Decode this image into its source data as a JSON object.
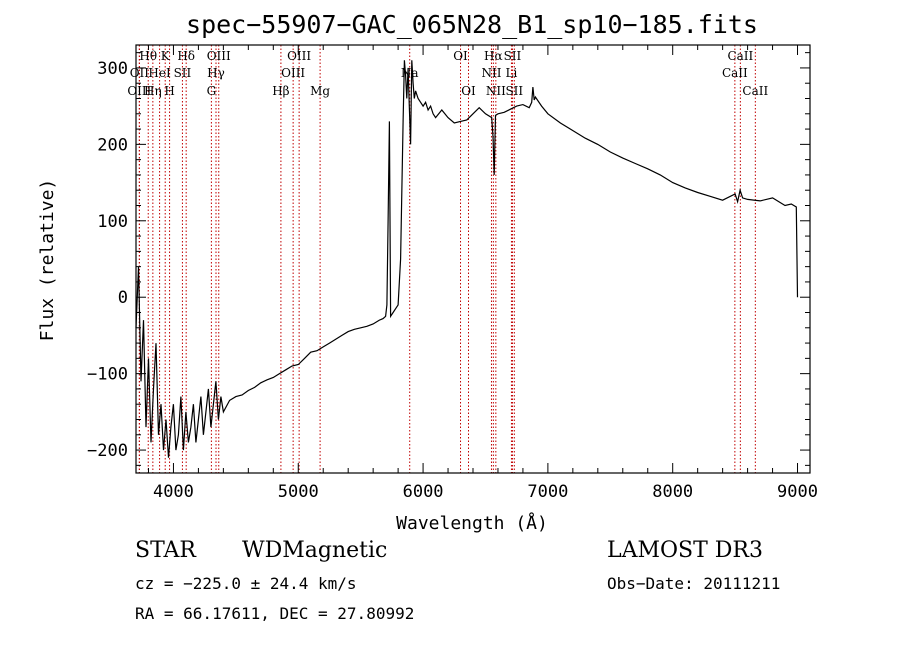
{
  "chart_data": {
    "type": "line",
    "title": "spec−55907−GAC_065N28_B1_sp10−185.fits",
    "xlabel": "Wavelength (Å)",
    "ylabel": "Flux (relative)",
    "xlim": [
      3700,
      9100
    ],
    "ylim": [
      -230,
      330
    ],
    "xticks": [
      4000,
      5000,
      6000,
      7000,
      8000,
      9000
    ],
    "xtick_labels": [
      "4000",
      "5000",
      "6000",
      "7000",
      "8000",
      "9000"
    ],
    "yticks": [
      -200,
      -100,
      0,
      100,
      200,
      300
    ],
    "ytick_labels": [
      "−200",
      "−100",
      "0",
      "100",
      "200",
      "300"
    ],
    "grid": false,
    "series": [
      {
        "x": [
          3700,
          3720,
          3740,
          3760,
          3780,
          3800,
          3820,
          3840,
          3860,
          3880,
          3900,
          3920,
          3940,
          3960,
          3980,
          4000,
          4020,
          4040,
          4060,
          4080,
          4100,
          4120,
          4140,
          4160,
          4180,
          4200,
          4220,
          4240,
          4260,
          4280,
          4300,
          4320,
          4340,
          4360,
          4380,
          4400,
          4450,
          4500,
          4550,
          4600,
          4650,
          4700,
          4750,
          4800,
          4850,
          4900,
          4950,
          5000,
          5050,
          5100,
          5150,
          5200,
          5250,
          5300,
          5350,
          5400,
          5450,
          5500,
          5550,
          5600,
          5650,
          5680,
          5700,
          5710,
          5720,
          5730,
          5740,
          5760,
          5780,
          5800,
          5820,
          5840,
          5850,
          5860,
          5870,
          5880,
          5890,
          5900,
          5910,
          5920,
          5930,
          5940,
          5960,
          5980,
          6000,
          6020,
          6040,
          6060,
          6080,
          6100,
          6150,
          6200,
          6250,
          6300,
          6350,
          6400,
          6450,
          6500,
          6550,
          6560,
          6570,
          6580,
          6600,
          6650,
          6700,
          6750,
          6800,
          6850,
          6870,
          6880,
          6890,
          6900,
          6950,
          7000,
          7100,
          7200,
          7300,
          7400,
          7500,
          7600,
          7700,
          7800,
          7900,
          8000,
          8100,
          8200,
          8300,
          8400,
          8500,
          8520,
          8540,
          8560,
          8600,
          8700,
          8800,
          8900,
          8950,
          8990,
          9000
        ],
        "values": [
          -40,
          40,
          -110,
          -30,
          -170,
          -80,
          -190,
          -120,
          -60,
          -180,
          -140,
          -200,
          -160,
          -210,
          -170,
          -140,
          -200,
          -180,
          -130,
          -200,
          -150,
          -190,
          -170,
          -140,
          -190,
          -160,
          -130,
          -180,
          -150,
          -120,
          -170,
          -140,
          -110,
          -160,
          -130,
          -150,
          -135,
          -130,
          -128,
          -122,
          -118,
          -112,
          -108,
          -105,
          -100,
          -95,
          -90,
          -88,
          -80,
          -72,
          -70,
          -65,
          -60,
          -55,
          -50,
          -45,
          -42,
          -40,
          -38,
          -35,
          -30,
          -28,
          -25,
          -10,
          100,
          230,
          -25,
          -20,
          -15,
          -10,
          50,
          230,
          310,
          290,
          260,
          300,
          250,
          200,
          310,
          280,
          260,
          270,
          260,
          255,
          250,
          255,
          245,
          250,
          240,
          235,
          245,
          235,
          228,
          230,
          232,
          240,
          248,
          240,
          235,
          210,
          160,
          238,
          240,
          242,
          246,
          250,
          252,
          248,
          255,
          275,
          258,
          262,
          250,
          240,
          228,
          218,
          208,
          200,
          190,
          182,
          175,
          168,
          160,
          150,
          143,
          137,
          132,
          127,
          135,
          125,
          140,
          130,
          128,
          126,
          130,
          120,
          122,
          118,
          0
        ]
      }
    ],
    "spectral_lines": [
      {
        "label": "Hθ",
        "x": 3798,
        "row": 0
      },
      {
        "label": "OII",
        "x": 3727,
        "row": 1
      },
      {
        "label": "OIII",
        "x": 3727,
        "row": 2
      },
      {
        "label": "K",
        "x": 3934,
        "row": 0
      },
      {
        "label": "HeI",
        "x": 3889,
        "row": 1
      },
      {
        "label": "Hη",
        "x": 3835,
        "row": 2
      },
      {
        "label": "Hδ",
        "x": 4102,
        "row": 0
      },
      {
        "label": "SII",
        "x": 4072,
        "row": 1
      },
      {
        "label": "H",
        "x": 3969,
        "row": 2
      },
      {
        "label": "OIII",
        "x": 4363,
        "row": 0
      },
      {
        "label": "Hγ",
        "x": 4341,
        "row": 1
      },
      {
        "label": "G",
        "x": 4304,
        "row": 2
      },
      {
        "label": "OIII",
        "x": 5007,
        "row": 0
      },
      {
        "label": "OIII",
        "x": 4959,
        "row": 1
      },
      {
        "label": "Hβ",
        "x": 4861,
        "row": 2
      },
      {
        "label": "Mg",
        "x": 5175,
        "row": 2
      },
      {
        "label": "Na",
        "x": 5893,
        "row": 1
      },
      {
        "label": "OI",
        "x": 6300,
        "row": 0
      },
      {
        "label": "OI",
        "x": 6364,
        "row": 2
      },
      {
        "label": "Hα",
        "x": 6563,
        "row": 0
      },
      {
        "label": "SII",
        "x": 6716,
        "row": 0
      },
      {
        "label": "NII",
        "x": 6548,
        "row": 1
      },
      {
        "label": "Li",
        "x": 6708,
        "row": 1
      },
      {
        "label": "NII",
        "x": 6583,
        "row": 2
      },
      {
        "label": "SII",
        "x": 6731,
        "row": 2
      },
      {
        "label": "CaII",
        "x": 8542,
        "row": 0
      },
      {
        "label": "CaII",
        "x": 8498,
        "row": 1
      },
      {
        "label": "CaII",
        "x": 8662,
        "row": 2
      }
    ]
  },
  "info": {
    "class": "STAR",
    "subclass": "WDMagnetic",
    "survey": "LAMOST DR3",
    "cz": "cz = −225.0 ± 24.4 km/s",
    "obs_date": "Obs−Date: 20111211",
    "radec": "RA =  66.17611, DEC =  27.80992"
  },
  "colors": {
    "line_markers": "#c00000",
    "spectrum": "#000000"
  }
}
